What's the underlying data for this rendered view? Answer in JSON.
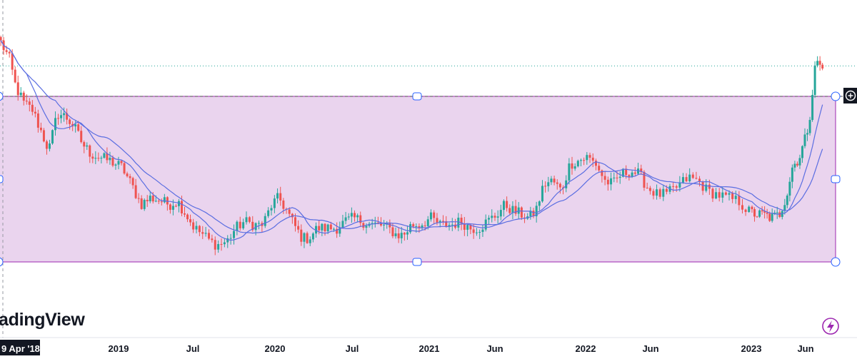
{
  "watermark": {
    "text": "adingView"
  },
  "crosshair": {
    "date_label": "9 Apr '18"
  },
  "icons": {
    "add_alert": "plus-circle-icon",
    "lightning": "lightning-icon"
  },
  "colors": {
    "up": "#26a69a",
    "down": "#ef5350",
    "ma": "#5b6ee1",
    "box_fill": "#e6cdeb",
    "box_stroke": "#9c27b0",
    "price_line": "#26a69a",
    "badge_bg": "#131722",
    "lightning": "#9c27b0"
  },
  "chart_data": {
    "type": "candlestick",
    "title": "",
    "xlabel": "",
    "ylabel": "",
    "x_ticks": [
      "2019",
      "Jul",
      "2020",
      "Jul",
      "2021",
      "Jun",
      "2022",
      "Jun",
      "2023",
      "Jun"
    ],
    "x_range": [
      "2018-04",
      "2023-08"
    ],
    "y_range": [
      0.35,
      1.06
    ],
    "grid": false,
    "series": [
      {
        "style": "candles",
        "anchors": [
          [
            "2018-03-20",
            1.0
          ],
          [
            "2018-04-10",
            0.95
          ],
          [
            "2018-04-25",
            0.87
          ],
          [
            "2018-05-15",
            0.82
          ],
          [
            "2018-06-05",
            0.8
          ],
          [
            "2018-06-25",
            0.74
          ],
          [
            "2018-07-15",
            0.68
          ],
          [
            "2018-08-05",
            0.79
          ],
          [
            "2018-08-25",
            0.78
          ],
          [
            "2018-09-15",
            0.75
          ],
          [
            "2018-10-05",
            0.7
          ],
          [
            "2018-10-25",
            0.67
          ],
          [
            "2018-11-15",
            0.66
          ],
          [
            "2018-12-10",
            0.65
          ],
          [
            "2019-01-10",
            0.63
          ],
          [
            "2019-02-05",
            0.57
          ],
          [
            "2019-02-25",
            0.52
          ],
          [
            "2019-03-20",
            0.54
          ],
          [
            "2019-04-15",
            0.53
          ],
          [
            "2019-05-05",
            0.52
          ],
          [
            "2019-05-25",
            0.53
          ],
          [
            "2019-06-15",
            0.49
          ],
          [
            "2019-07-05",
            0.45
          ],
          [
            "2019-07-25",
            0.43
          ],
          [
            "2019-08-10",
            0.41
          ],
          [
            "2019-08-25",
            0.4
          ],
          [
            "2019-09-15",
            0.41
          ],
          [
            "2019-10-05",
            0.45
          ],
          [
            "2019-10-25",
            0.47
          ],
          [
            "2019-11-15",
            0.46
          ],
          [
            "2019-12-05",
            0.46
          ],
          [
            "2019-12-25",
            0.52
          ],
          [
            "2020-01-10",
            0.54
          ],
          [
            "2020-01-25",
            0.51
          ],
          [
            "2020-02-15",
            0.46
          ],
          [
            "2020-03-05",
            0.42
          ],
          [
            "2020-03-20",
            0.42
          ],
          [
            "2020-04-10",
            0.45
          ],
          [
            "2020-05-05",
            0.45
          ],
          [
            "2020-05-25",
            0.45
          ],
          [
            "2020-06-15",
            0.47
          ],
          [
            "2020-07-05",
            0.48
          ],
          [
            "2020-07-25",
            0.47
          ],
          [
            "2020-08-15",
            0.46
          ],
          [
            "2020-09-05",
            0.46
          ],
          [
            "2020-09-25",
            0.45
          ],
          [
            "2020-10-15",
            0.43
          ],
          [
            "2020-11-01",
            0.43
          ],
          [
            "2020-11-20",
            0.46
          ],
          [
            "2020-12-10",
            0.46
          ],
          [
            "2021-01-05",
            0.48
          ],
          [
            "2021-01-25",
            0.46
          ],
          [
            "2021-02-20",
            0.46
          ],
          [
            "2021-03-15",
            0.47
          ],
          [
            "2021-04-05",
            0.45
          ],
          [
            "2021-04-25",
            0.45
          ],
          [
            "2021-05-15",
            0.47
          ],
          [
            "2021-06-05",
            0.49
          ],
          [
            "2021-06-25",
            0.52
          ],
          [
            "2021-07-15",
            0.5
          ],
          [
            "2021-08-05",
            0.49
          ],
          [
            "2021-08-20",
            0.48
          ],
          [
            "2021-09-05",
            0.5
          ],
          [
            "2021-09-25",
            0.58
          ],
          [
            "2021-10-15",
            0.59
          ],
          [
            "2021-11-05",
            0.56
          ],
          [
            "2021-11-25",
            0.64
          ],
          [
            "2021-12-15",
            0.65
          ],
          [
            "2022-01-05",
            0.66
          ],
          [
            "2022-01-25",
            0.64
          ],
          [
            "2022-02-15",
            0.59
          ],
          [
            "2022-03-05",
            0.58
          ],
          [
            "2022-03-25",
            0.61
          ],
          [
            "2022-04-15",
            0.62
          ],
          [
            "2022-05-05",
            0.61
          ],
          [
            "2022-05-25",
            0.57
          ],
          [
            "2022-06-15",
            0.55
          ],
          [
            "2022-07-05",
            0.55
          ],
          [
            "2022-07-25",
            0.57
          ],
          [
            "2022-08-20",
            0.6
          ],
          [
            "2022-09-10",
            0.59
          ],
          [
            "2022-09-30",
            0.56
          ],
          [
            "2022-10-20",
            0.55
          ],
          [
            "2022-11-10",
            0.54
          ],
          [
            "2022-12-05",
            0.53
          ],
          [
            "2022-12-25",
            0.5
          ],
          [
            "2023-01-15",
            0.49
          ],
          [
            "2023-02-05",
            0.49
          ],
          [
            "2023-02-25",
            0.48
          ],
          [
            "2023-03-20",
            0.49
          ],
          [
            "2023-04-10",
            0.55
          ],
          [
            "2023-04-25",
            0.63
          ],
          [
            "2023-05-15",
            0.66
          ],
          [
            "2023-06-01",
            0.72
          ],
          [
            "2023-06-10",
            0.76
          ],
          [
            "2023-06-18",
            0.83
          ],
          [
            "2023-06-25",
            0.91
          ],
          [
            "2023-07-02",
            0.95
          ],
          [
            "2023-07-10",
            0.93
          ],
          [
            "2023-07-18",
            0.92
          ]
        ]
      },
      {
        "style": "moving-average",
        "period_weeks": 10
      },
      {
        "style": "moving-average",
        "period_weeks": 20
      }
    ],
    "horizontal_lines": [
      {
        "style": "dotted",
        "value": 0.93
      },
      {
        "style": "dashed",
        "value": 0.84
      }
    ],
    "range_box": {
      "top": 0.84,
      "bottom": 0.35,
      "start": "2018-03",
      "end": "2023-08"
    }
  }
}
